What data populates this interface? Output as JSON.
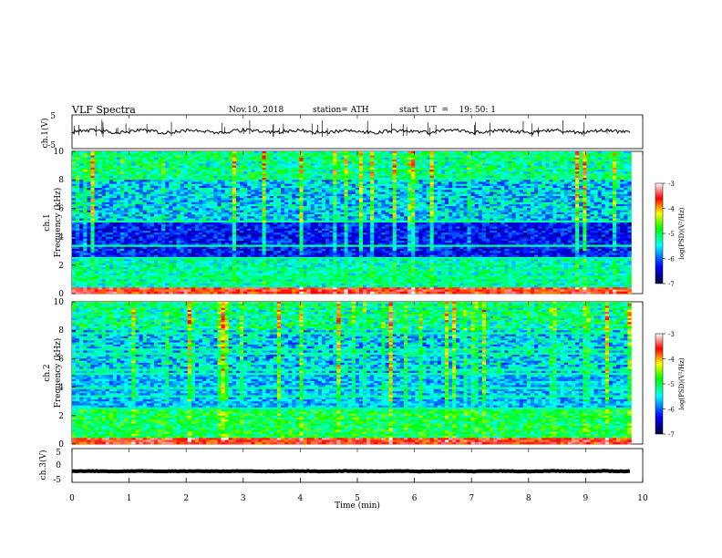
{
  "header": {
    "title": "VLF  Spectra",
    "date": "Nov.10, 2018",
    "station": "station= ATH",
    "start": "start  UT  =    19: 50: 1"
  },
  "chart_data": [
    {
      "type": "line",
      "id": "ch1-waveform",
      "ylabel": "ch.1(V)",
      "ylim": [
        -5,
        5
      ],
      "yticks": [
        "5",
        "-5"
      ],
      "xlim": [
        0,
        10
      ],
      "color": "#000000",
      "x_extent": [
        0,
        9.8
      ],
      "level": 0.1
    },
    {
      "type": "heatmap",
      "id": "ch1-spectrogram",
      "ylabel": "ch.1\nFrequency  (kHz)",
      "ylim": [
        0,
        10
      ],
      "yticks": [
        "0",
        "2",
        "4",
        "6",
        "8",
        "10"
      ],
      "xlim": [
        0,
        10
      ],
      "x_extent": [
        0,
        9.8
      ],
      "colorbar": {
        "label": "log(PSD)(V²/Hz)",
        "range": [
          -7,
          -3
        ],
        "ticks": [
          "-3",
          "-4",
          "-5",
          "-6",
          "-7"
        ],
        "colors": [
          "#000033",
          "#0000ff",
          "#00ffff",
          "#00ff00",
          "#ffff00",
          "#ff0000",
          "#ffffff"
        ]
      }
    },
    {
      "type": "heatmap",
      "id": "ch2-spectrogram",
      "ylabel": "ch.2\nFrequency  (kHz)",
      "ylim": [
        0,
        10
      ],
      "yticks": [
        "0",
        "2",
        "4",
        "6",
        "8",
        "10"
      ],
      "xlim": [
        0,
        10
      ],
      "x_extent": [
        0,
        9.8
      ],
      "colorbar": {
        "label": "log(PSD)(V²/Hz)",
        "range": [
          -7,
          -3
        ],
        "ticks": [
          "-3",
          "-4",
          "-5",
          "-6",
          "-7"
        ],
        "colors": [
          "#000033",
          "#0000ff",
          "#00ffff",
          "#00ff00",
          "#ffff00",
          "#ff0000",
          "#ffffff"
        ]
      }
    },
    {
      "type": "line",
      "id": "ch3-waveform",
      "ylabel": "ch.3(V)",
      "ylim": [
        -5,
        5
      ],
      "yticks": [
        "5",
        "0",
        "-5"
      ],
      "xlim": [
        0,
        10
      ],
      "x_extent": [
        0,
        9.8
      ],
      "level": -1.7,
      "color": "#000000"
    }
  ],
  "xaxis": {
    "label": "Time  (min)",
    "ticks": [
      "0",
      "1",
      "2",
      "3",
      "4",
      "5",
      "6",
      "7",
      "8",
      "9",
      "10"
    ]
  }
}
